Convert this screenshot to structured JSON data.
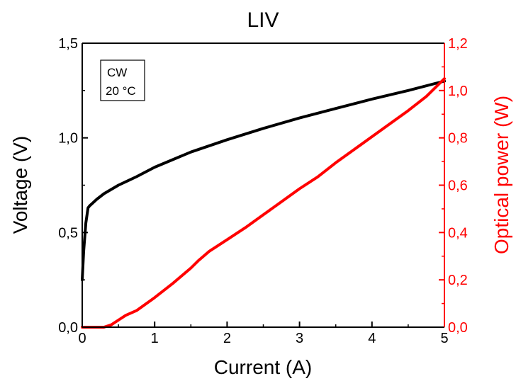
{
  "chart_data": {
    "type": "line",
    "title": "LIV",
    "xlabel": "Current (A)",
    "ylabel_left": "Voltage (V)",
    "ylabel_right": "Optical power (W)",
    "xlim": [
      0,
      5
    ],
    "ylim_left": [
      0,
      1.5
    ],
    "ylim_right": [
      0,
      1.2
    ],
    "x_ticks": [
      "0",
      "1",
      "2",
      "3",
      "4",
      "5"
    ],
    "y_left_ticks": [
      "0,0",
      "0,5",
      "1,0",
      "1,5"
    ],
    "y_right_ticks": [
      "0,0",
      "0,2",
      "0,4",
      "0,6",
      "0,8",
      "1,0",
      "1,2"
    ],
    "grid": false,
    "annotation": [
      "CW",
      "20 °C"
    ],
    "colors": {
      "voltage": "#000000",
      "power": "#ff0000"
    },
    "series": [
      {
        "axis": "left",
        "color": "#000000",
        "x": [
          0,
          0.02,
          0.05,
          0.08,
          0.1,
          0.2,
          0.3,
          0.5,
          0.75,
          1.0,
          1.5,
          2.0,
          2.5,
          3.0,
          3.5,
          4.0,
          4.5,
          5.0
        ],
        "values": [
          0.25,
          0.4,
          0.55,
          0.63,
          0.64,
          0.675,
          0.705,
          0.75,
          0.795,
          0.845,
          0.925,
          0.99,
          1.05,
          1.105,
          1.155,
          1.205,
          1.25,
          1.3
        ]
      },
      {
        "axis": "right",
        "color": "#ff0000",
        "x": [
          0,
          0.3,
          0.4,
          0.5,
          0.6,
          0.75,
          1.0,
          1.25,
          1.5,
          1.6,
          1.75,
          2.0,
          2.25,
          2.5,
          2.75,
          3.0,
          3.25,
          3.5,
          3.75,
          4.0,
          4.25,
          4.5,
          4.75,
          5.0
        ],
        "values": [
          0,
          0,
          0.01,
          0.03,
          0.05,
          0.07,
          0.125,
          0.185,
          0.25,
          0.28,
          0.32,
          0.37,
          0.42,
          0.475,
          0.53,
          0.585,
          0.635,
          0.695,
          0.75,
          0.805,
          0.86,
          0.915,
          0.975,
          1.05
        ]
      }
    ]
  }
}
